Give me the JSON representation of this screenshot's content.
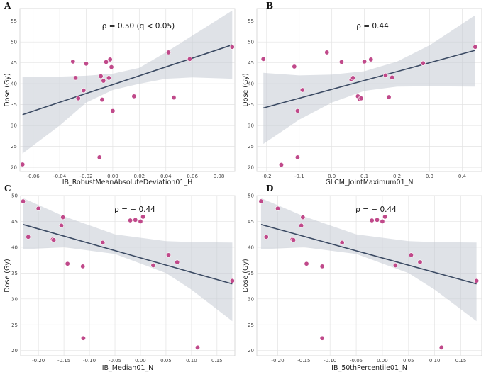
{
  "chart_data": [
    {
      "type": "scatter",
      "panel_label": "A",
      "annotation": "ρ = 0.50 (q < 0.05)",
      "xlabel": "IB_RobustMeanAbsoluteDeviation01_H",
      "ylabel": "Dose (Gy)",
      "xlim": [
        -0.07,
        0.092
      ],
      "ylim": [
        19,
        58
      ],
      "xticks": [
        -0.06,
        -0.04,
        -0.02,
        0.0,
        0.02,
        0.04,
        0.06,
        0.08
      ],
      "xtick_labels": [
        "-0.06",
        "-0.04",
        "-0.02",
        "0.00",
        "0.02",
        "0.04",
        "0.06",
        "0.08"
      ],
      "yticks": [
        20,
        25,
        30,
        35,
        40,
        45,
        50,
        55
      ],
      "ytick_labels": [
        "20",
        "25",
        "30",
        "35",
        "40",
        "45",
        "50",
        "55"
      ],
      "x": [
        -0.068,
        -0.03,
        -0.028,
        -0.026,
        -0.022,
        -0.02,
        -0.01,
        -0.009,
        -0.008,
        -0.007,
        -0.005,
        -0.003,
        -0.002,
        -0.001,
        0.0,
        0.016,
        0.042,
        0.046,
        0.058,
        0.09
      ],
      "y": [
        20.7,
        45.3,
        41.4,
        36.5,
        38.4,
        44.8,
        22.4,
        41.8,
        36.2,
        40.7,
        45.2,
        41.4,
        45.8,
        44.0,
        33.5,
        37.0,
        47.5,
        36.7,
        45.9,
        48.8
      ],
      "fit": {
        "x": [
          -0.068,
          0.09
        ],
        "y": [
          32.6,
          49.3
        ]
      },
      "ci_upper": {
        "x": [
          -0.068,
          -0.04,
          -0.02,
          0.0,
          0.02,
          0.04,
          0.06,
          0.09
        ],
        "y": [
          41.6,
          41.7,
          41.9,
          42.4,
          43.8,
          47.5,
          51.5,
          57.5
        ]
      },
      "ci_lower": {
        "x": [
          -0.068,
          -0.04,
          -0.02,
          0.0,
          0.02,
          0.04,
          0.06,
          0.09
        ],
        "y": [
          23.3,
          30.0,
          35.5,
          38.5,
          40.0,
          41.2,
          41.5,
          41.2
        ]
      }
    },
    {
      "type": "scatter",
      "panel_label": "B",
      "annotation": "ρ = 0.44",
      "xlabel": "GLCM_JointMaximum01_N",
      "ylabel": "Dose (Gy)",
      "xlim": [
        -0.23,
        0.46
      ],
      "ylim": [
        19,
        58
      ],
      "xticks": [
        -0.2,
        -0.1,
        0.0,
        0.1,
        0.2,
        0.3,
        0.4
      ],
      "xtick_labels": [
        "-0.2",
        "-0.1",
        "0.0",
        "0.1",
        "0.2",
        "0.3",
        "0.4"
      ],
      "yticks": [
        20,
        25,
        30,
        35,
        40,
        45,
        50,
        55
      ],
      "ytick_labels": [
        "20",
        "25",
        "30",
        "35",
        "40",
        "45",
        "50",
        "55"
      ],
      "x": [
        -0.21,
        -0.155,
        -0.115,
        -0.105,
        -0.105,
        -0.09,
        -0.015,
        0.03,
        0.06,
        0.065,
        0.08,
        0.085,
        0.09,
        0.1,
        0.12,
        0.165,
        0.175,
        0.185,
        0.28,
        0.44
      ],
      "y": [
        45.9,
        20.6,
        44.1,
        33.5,
        22.4,
        38.5,
        47.5,
        45.2,
        41.0,
        41.4,
        37.0,
        36.3,
        36.5,
        45.3,
        45.8,
        42.0,
        36.8,
        41.5,
        44.9,
        48.8
      ],
      "fit": {
        "x": [
          -0.21,
          0.44
        ],
        "y": [
          34.2,
          48.0
        ]
      },
      "ci_upper": {
        "x": [
          -0.21,
          -0.1,
          0.0,
          0.1,
          0.2,
          0.3,
          0.44
        ],
        "y": [
          42.6,
          42.0,
          42.2,
          43.0,
          45.3,
          49.2,
          56.4
        ]
      },
      "ci_lower": {
        "x": [
          -0.21,
          -0.1,
          0.0,
          0.1,
          0.2,
          0.3,
          0.44
        ],
        "y": [
          25.6,
          31.4,
          35.5,
          38.3,
          39.3,
          39.4,
          39.3
        ]
      }
    },
    {
      "type": "scatter",
      "panel_label": "C",
      "annotation": "ρ = − 0.44",
      "xlabel": "IB_Median01_N",
      "ylabel": "Dose (Gy)",
      "xlim": [
        -0.235,
        0.185
      ],
      "ylim": [
        19,
        50
      ],
      "xticks": [
        -0.2,
        -0.15,
        -0.1,
        -0.05,
        0.0,
        0.05,
        0.1,
        0.15
      ],
      "xtick_labels": [
        "-0.20",
        "-0.15",
        "-0.10",
        "-0.05",
        "0.00",
        "0.05",
        "0.10",
        "0.15"
      ],
      "yticks": [
        20,
        25,
        30,
        35,
        40,
        45,
        50
      ],
      "ytick_labels": [
        "20",
        "25",
        "30",
        "35",
        "40",
        "45",
        "50"
      ],
      "x": [
        -0.23,
        -0.22,
        -0.2,
        -0.172,
        -0.17,
        -0.155,
        -0.152,
        -0.143,
        -0.113,
        -0.112,
        -0.074,
        -0.02,
        -0.01,
        0.0,
        0.005,
        0.025,
        0.055,
        0.072,
        0.112,
        0.18
      ],
      "y": [
        48.9,
        42.0,
        47.5,
        41.5,
        41.4,
        44.2,
        45.8,
        36.8,
        36.3,
        22.4,
        40.9,
        45.2,
        45.3,
        45.0,
        45.9,
        36.5,
        38.5,
        37.1,
        20.6,
        33.5
      ],
      "fit": {
        "x": [
          -0.23,
          0.18
        ],
        "y": [
          44.4,
          32.9
        ]
      },
      "ci_upper": {
        "x": [
          -0.23,
          -0.15,
          -0.05,
          0.05,
          0.1,
          0.18
        ],
        "y": [
          49.5,
          46.0,
          42.5,
          41.2,
          41.0,
          40.9
        ]
      },
      "ci_lower": {
        "x": [
          -0.23,
          -0.15,
          -0.05,
          0.05,
          0.1,
          0.18
        ],
        "y": [
          39.6,
          40.0,
          38.7,
          35.0,
          31.8,
          25.7
        ]
      }
    },
    {
      "type": "scatter",
      "panel_label": "D",
      "annotation": "ρ = − 0.44",
      "xlabel": "IB_50thPercentile01_N",
      "ylabel": "Dose (Gy)",
      "xlim": [
        -0.24,
        0.19
      ],
      "ylim": [
        19,
        50
      ],
      "xticks": [
        -0.2,
        -0.15,
        -0.1,
        -0.05,
        0.0,
        0.05,
        0.1,
        0.15
      ],
      "xtick_labels": [
        "-0.20",
        "-0.15",
        "-0.10",
        "-0.05",
        "0.00",
        "0.05",
        "0.10",
        "0.15"
      ],
      "yticks": [
        20,
        25,
        30,
        35,
        40,
        45,
        50
      ],
      "ytick_labels": [
        "20",
        "25",
        "30",
        "35",
        "40",
        "45",
        "50"
      ],
      "x": [
        -0.232,
        -0.222,
        -0.2,
        -0.172,
        -0.17,
        -0.155,
        -0.152,
        -0.145,
        -0.115,
        -0.115,
        -0.077,
        -0.02,
        -0.01,
        0.0,
        0.005,
        0.025,
        0.055,
        0.072,
        0.113,
        0.18
      ],
      "y": [
        48.9,
        42.0,
        47.5,
        41.5,
        41.4,
        44.2,
        45.8,
        36.8,
        36.3,
        22.4,
        40.9,
        45.2,
        45.3,
        45.0,
        45.9,
        36.5,
        38.5,
        37.1,
        20.6,
        33.5
      ],
      "fit": {
        "x": [
          -0.232,
          0.18
        ],
        "y": [
          44.4,
          32.9
        ]
      },
      "ci_upper": {
        "x": [
          -0.232,
          -0.15,
          -0.05,
          0.05,
          0.1,
          0.18
        ],
        "y": [
          49.5,
          46.0,
          42.5,
          41.2,
          41.0,
          40.9
        ]
      },
      "ci_lower": {
        "x": [
          -0.232,
          -0.15,
          -0.05,
          0.05,
          0.1,
          0.18
        ],
        "y": [
          39.6,
          40.0,
          38.7,
          35.0,
          31.8,
          25.7
        ]
      }
    }
  ]
}
